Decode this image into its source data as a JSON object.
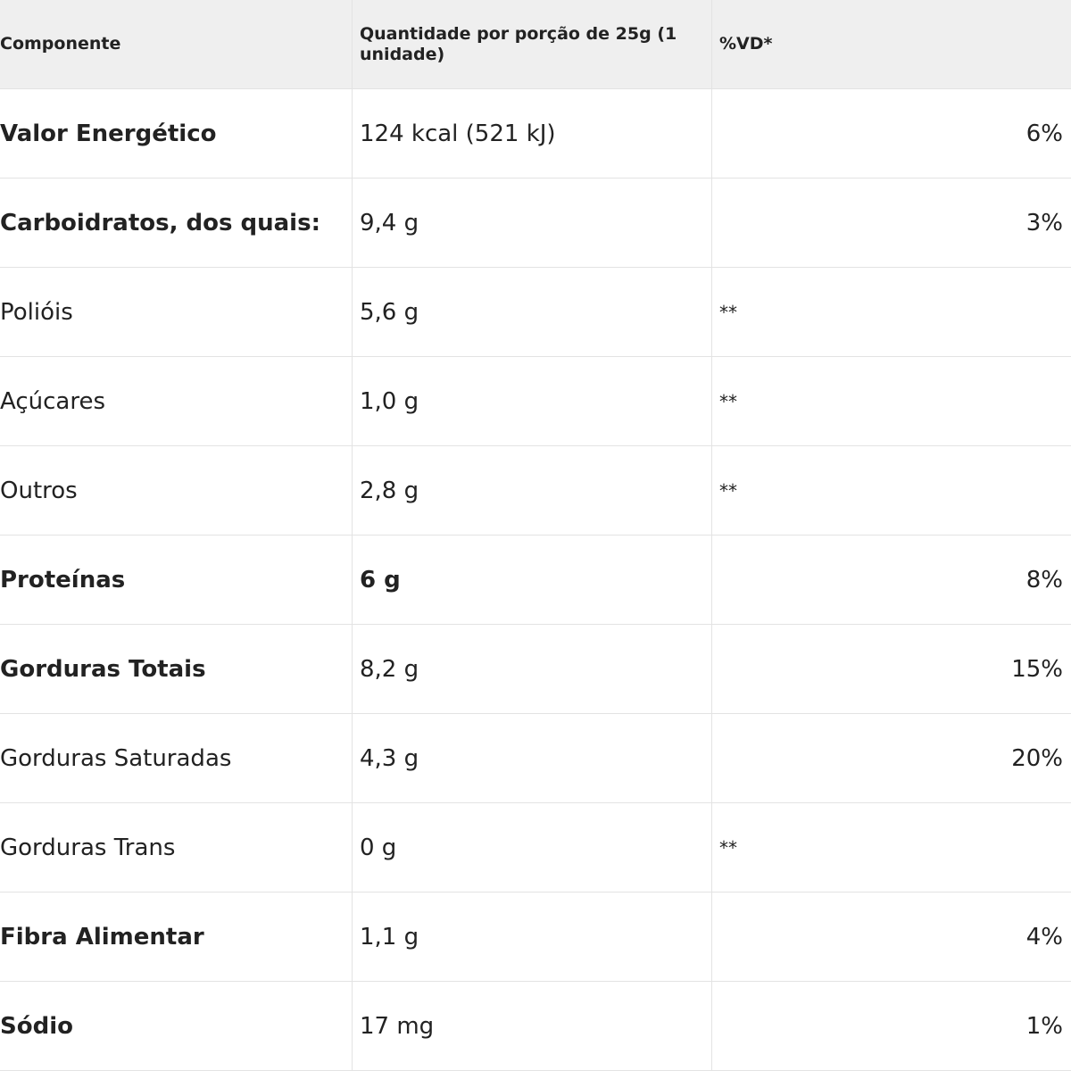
{
  "header": {
    "component": "Componente",
    "quantity": "Quantidade por porção de 25g (1 unidade)",
    "dv": "%VD*"
  },
  "rows": [
    {
      "component": "Valor Energético",
      "quantity": "124 kcal (521 kJ)",
      "dv": "6%"
    },
    {
      "component": "Carboidratos, dos quais:",
      "quantity": "9,4 g",
      "dv": "3%"
    },
    {
      "component": "Polióis",
      "quantity": "5,6 g",
      "dv": "**"
    },
    {
      "component": "Açúcares",
      "quantity": "1,0 g",
      "dv": "**"
    },
    {
      "component": "Outros",
      "quantity": "2,8 g",
      "dv": "**"
    },
    {
      "component": "Proteínas",
      "quantity": "6 g",
      "dv": "8%"
    },
    {
      "component": "Gorduras Totais",
      "quantity": "8,2 g",
      "dv": "15%"
    },
    {
      "component": "Gorduras Saturadas",
      "quantity": "4,3 g",
      "dv": "20%"
    },
    {
      "component": "Gorduras Trans",
      "quantity": "0 g",
      "dv": "**"
    },
    {
      "component": "Fibra Alimentar",
      "quantity": "1,1 g",
      "dv": "4%"
    },
    {
      "component": "Sódio",
      "quantity": "17 mg",
      "dv": "1%"
    }
  ]
}
